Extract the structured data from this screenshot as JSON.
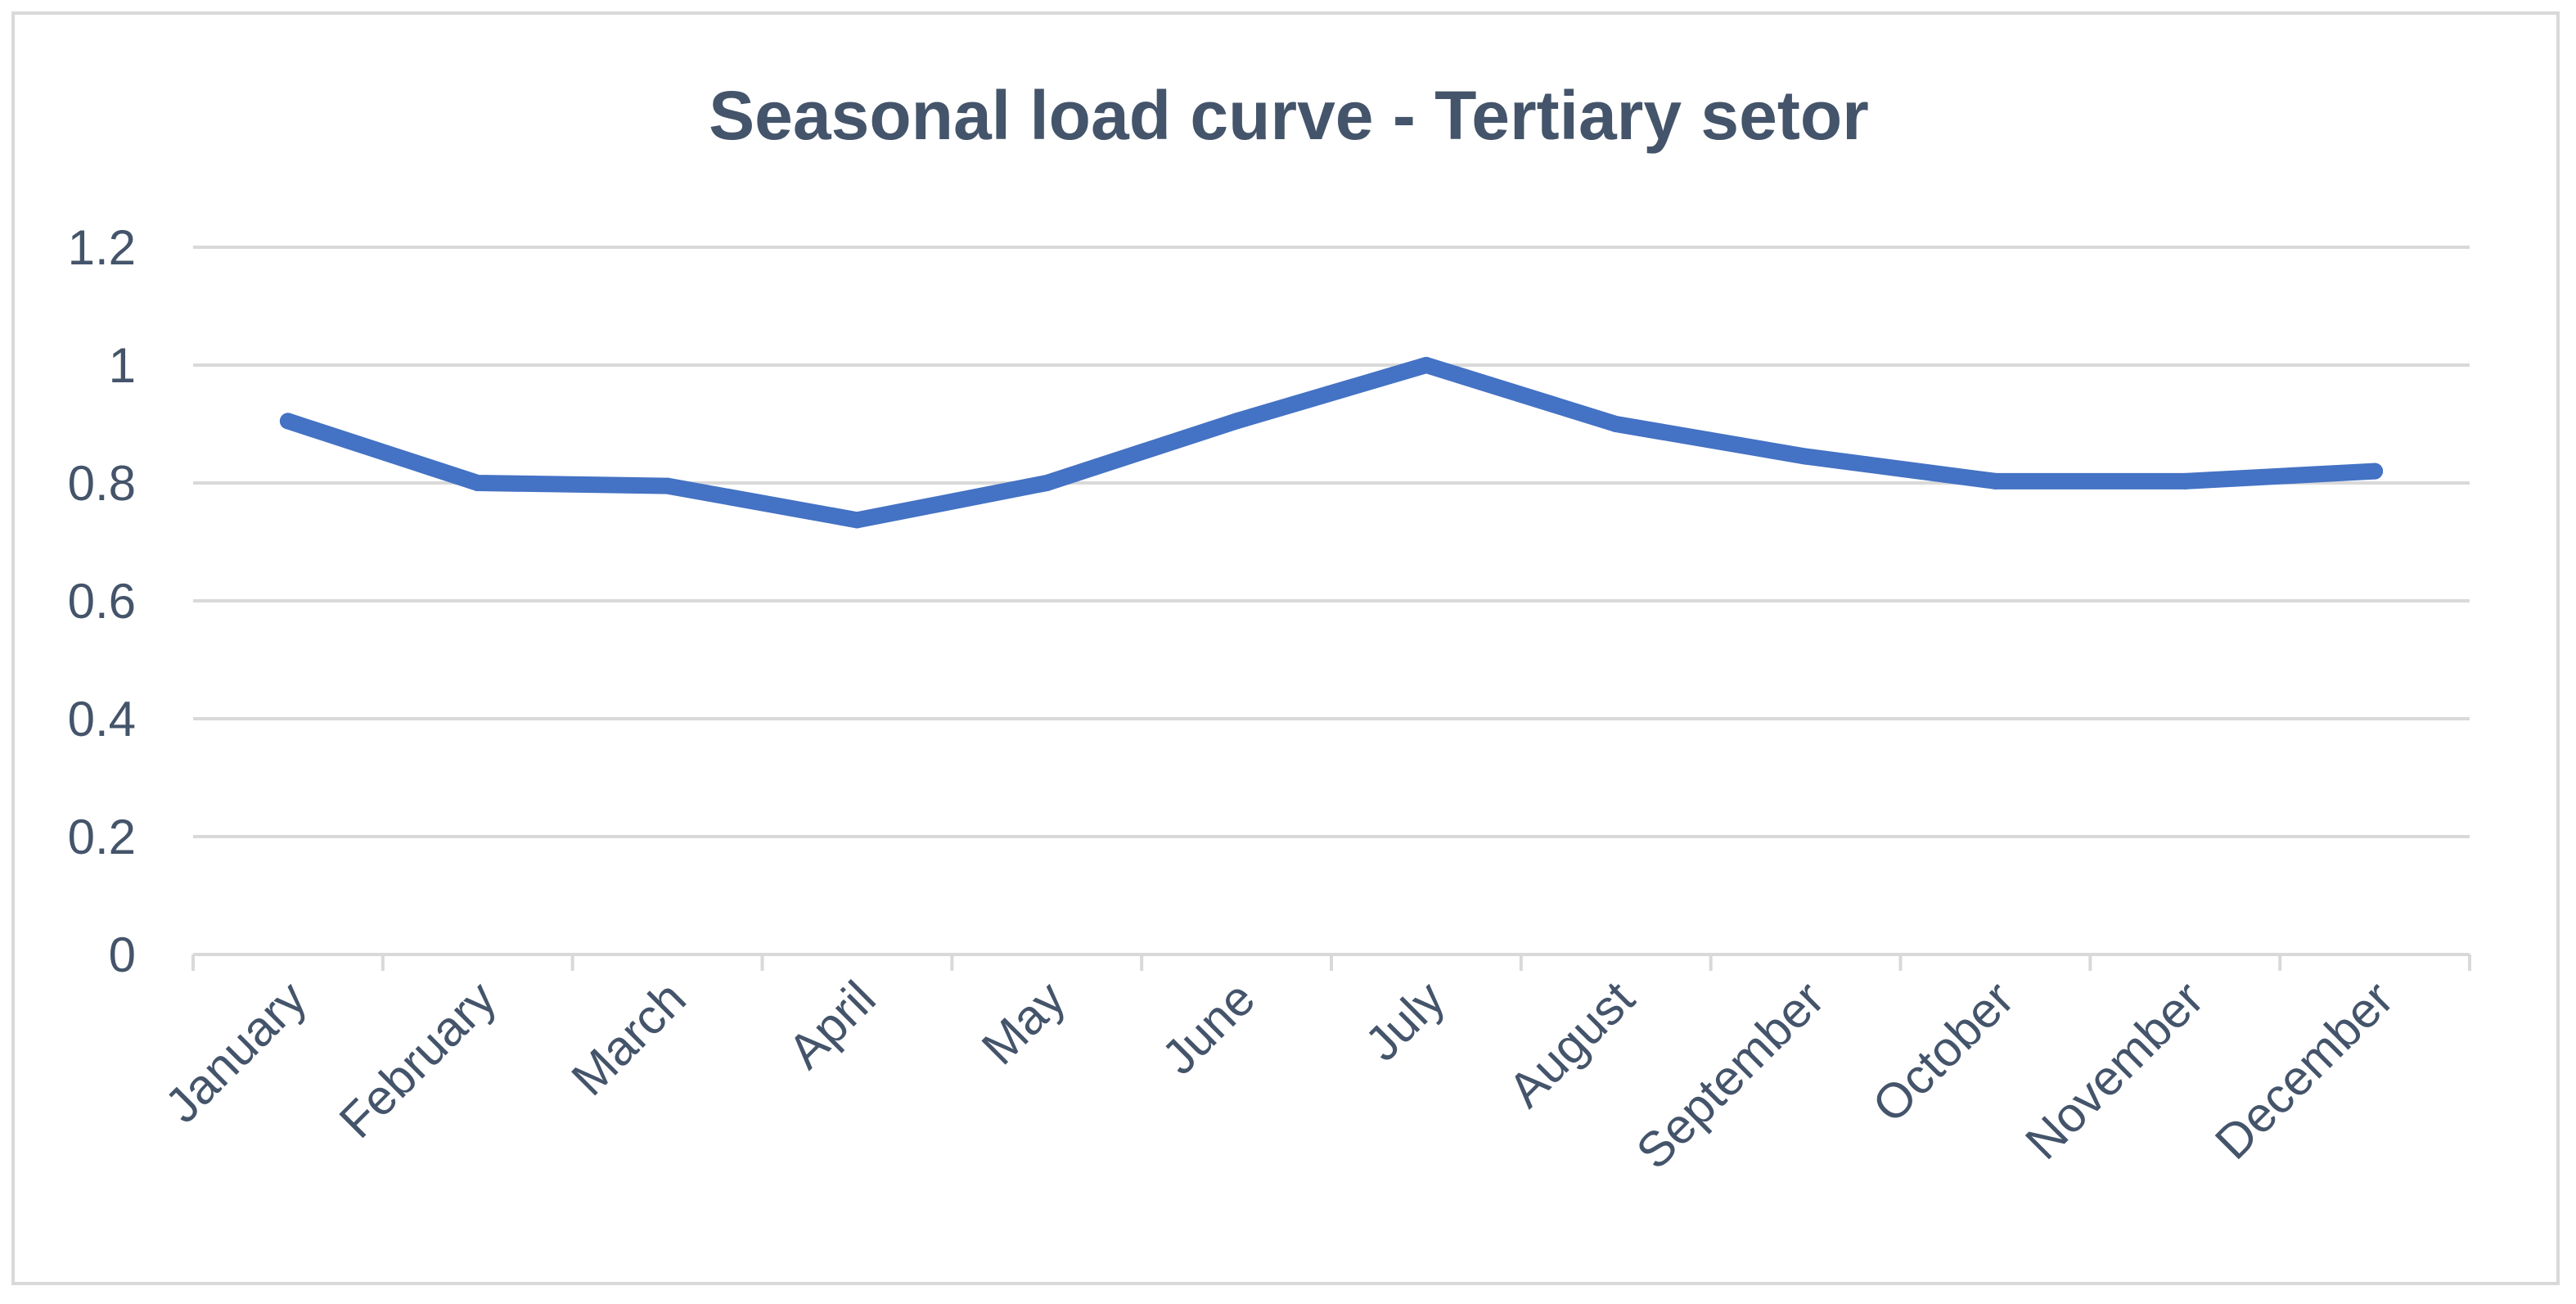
{
  "colors": {
    "line": "#4472C4",
    "text": "#44546A",
    "grid": "#D9D9D9",
    "border": "#D9D9D9",
    "background": "#FFFFFF"
  },
  "chart_data": {
    "type": "line",
    "title": "Seasonal load curve - Tertiary setor",
    "xlabel": "",
    "ylabel": "",
    "categories": [
      "January",
      "February",
      "March",
      "April",
      "May",
      "June",
      "July",
      "August",
      "September",
      "October",
      "November",
      "December"
    ],
    "series": [
      {
        "name": "Seasonal load",
        "values": [
          0.905,
          0.8,
          0.795,
          0.737,
          0.8,
          0.905,
          1.0,
          0.9,
          0.845,
          0.803,
          0.803,
          0.82
        ]
      }
    ],
    "ylim": [
      0,
      1.2
    ],
    "yticks": [
      "0",
      "0.2",
      "0.4",
      "0.6",
      "0.8",
      "1",
      "1.2"
    ],
    "grid": true,
    "legend": "none"
  }
}
